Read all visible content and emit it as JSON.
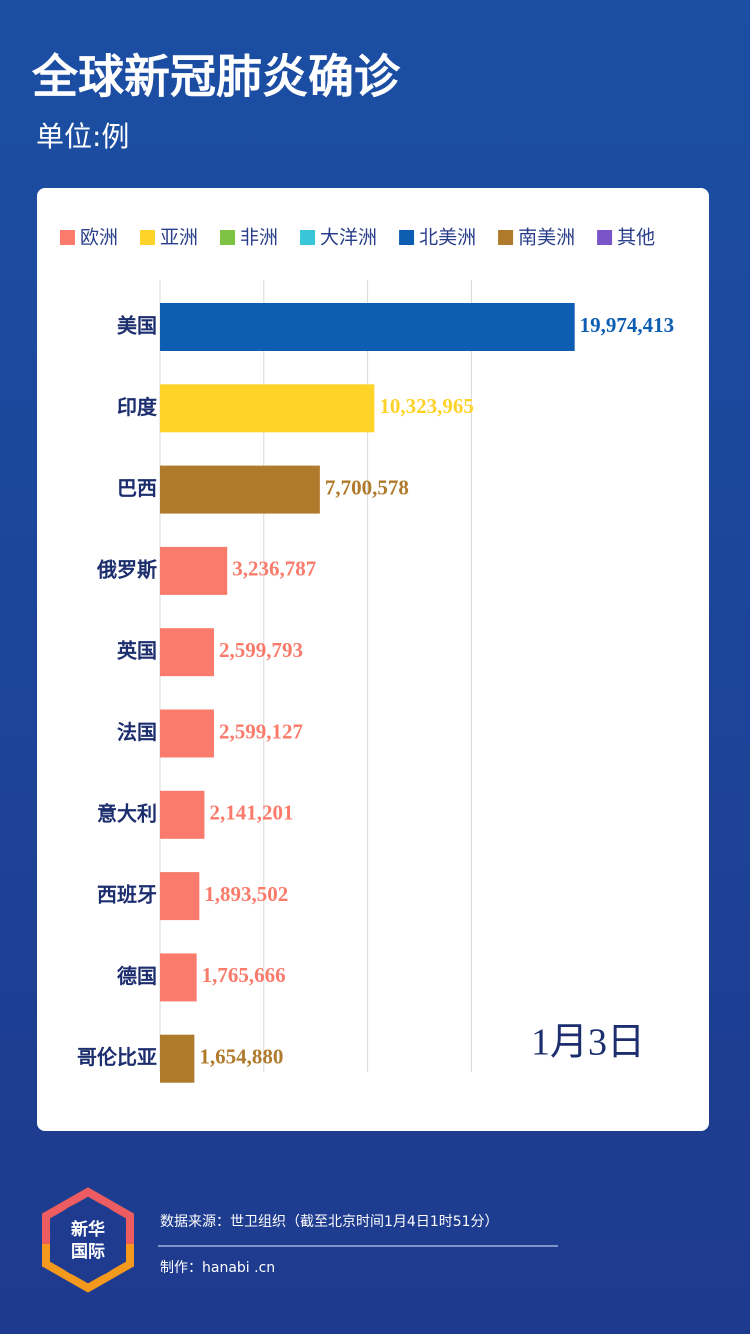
{
  "chart_data": {
    "type": "hbar",
    "title": "全球新冠肺炎确诊",
    "subtitle": "单位:例",
    "categories": [
      "美国",
      "印度",
      "巴西",
      "俄罗斯",
      "英国",
      "法国",
      "意大利",
      "西班牙",
      "德国",
      "哥伦比亚"
    ],
    "series": [
      {
        "name": "欧洲",
        "color": "#fa7b6b",
        "values": [
          null,
          null,
          null,
          3236787,
          2599793,
          2599127,
          2141201,
          1893502,
          1765666,
          null
        ],
        "value_labels": [
          null,
          null,
          null,
          "3,236,787",
          "2,599,793",
          "2,599,127",
          "2,141,201",
          "1,893,502",
          "1,765,666",
          null
        ]
      },
      {
        "name": "亚洲",
        "color": "#fdd329",
        "values": [
          null,
          10323965,
          null,
          null,
          null,
          null,
          null,
          null,
          null,
          null
        ],
        "value_labels": [
          null,
          "10,323,965",
          null,
          null,
          null,
          null,
          null,
          null,
          null,
          null
        ]
      },
      {
        "name": "非洲",
        "color": "#7dc243",
        "values": [
          null,
          null,
          null,
          null,
          null,
          null,
          null,
          null,
          null,
          null
        ],
        "value_labels": [
          null,
          null,
          null,
          null,
          null,
          null,
          null,
          null,
          null,
          null
        ]
      },
      {
        "name": "大洋洲",
        "color": "#39c6d8",
        "values": [
          null,
          null,
          null,
          null,
          null,
          null,
          null,
          null,
          null,
          null
        ],
        "value_labels": [
          null,
          null,
          null,
          null,
          null,
          null,
          null,
          null,
          null,
          null
        ]
      },
      {
        "name": "北美洲",
        "color": "#0d5db3",
        "values": [
          19974413,
          null,
          null,
          null,
          null,
          null,
          null,
          null,
          null,
          null
        ],
        "value_labels": [
          "19,974,413",
          null,
          null,
          null,
          null,
          null,
          null,
          null,
          null,
          null
        ]
      },
      {
        "name": "南美洲",
        "color": "#b07a2c",
        "values": [
          null,
          null,
          7700578,
          null,
          null,
          null,
          null,
          null,
          null,
          1654880
        ],
        "value_labels": [
          null,
          null,
          "7,700,578",
          null,
          null,
          null,
          null,
          null,
          null,
          "1,654,880"
        ]
      },
      {
        "name": "其他",
        "color": "#7a54c9",
        "values": [
          null,
          null,
          null,
          null,
          null,
          null,
          null,
          null,
          null,
          null
        ],
        "value_labels": [
          null,
          null,
          null,
          null,
          null,
          null,
          null,
          null,
          null,
          null
        ]
      }
    ],
    "xlim": [
      0,
      25000000
    ],
    "xticks": [
      5000000,
      10000000,
      15000000
    ],
    "grid": true,
    "annotation": "1月3日"
  },
  "footer": {
    "logo": [
      "新华",
      "国际"
    ],
    "source": "数据来源：世卫组织（截至北京时间1月4日1时51分）",
    "credit": "制作：hanabi  .cn"
  }
}
